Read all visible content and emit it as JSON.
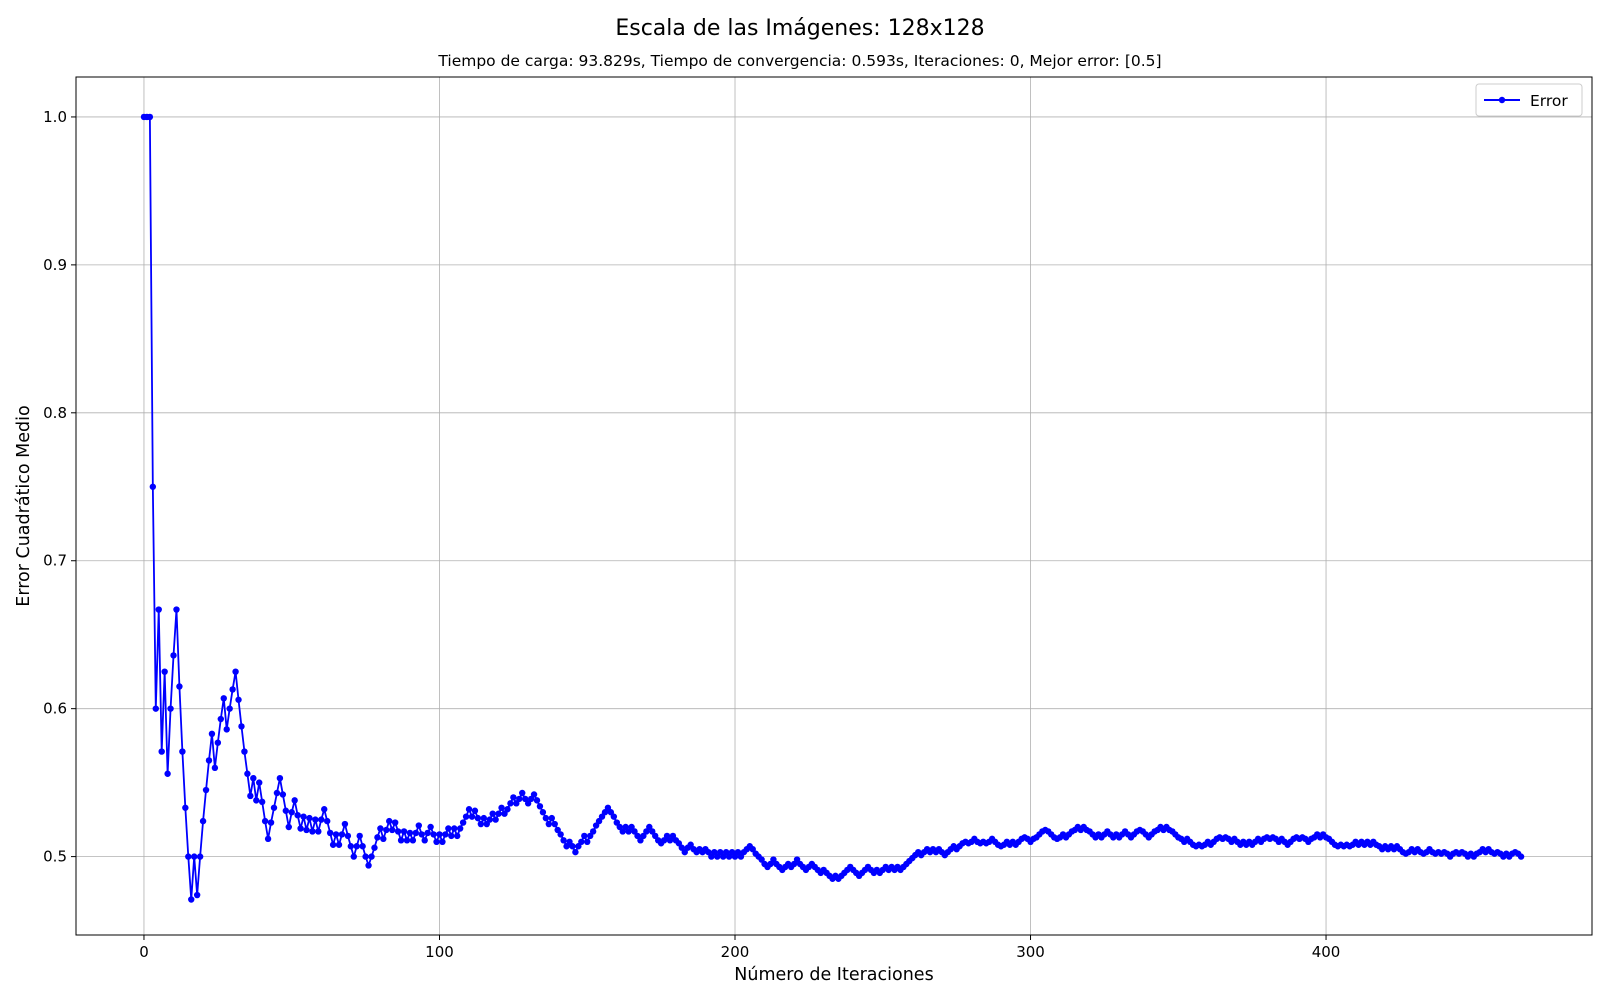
{
  "chart_data": {
    "type": "line",
    "title": "Escala de las Imágenes: 128x128",
    "subtitle": "Tiempo de carga: 93.829s, Tiempo de convergencia: 0.593s, Iteraciones: 0, Mejor error: [0.5]",
    "xlabel": "Número de Iteraciones",
    "ylabel": "Error Cuadrático Medio",
    "xlim": [
      -23,
      490
    ],
    "ylim": [
      0.447,
      1.027
    ],
    "xticks": [
      0,
      100,
      200,
      300,
      400
    ],
    "yticks": [
      0.5,
      0.6,
      0.7,
      0.8,
      0.9,
      1.0
    ],
    "xtick_labels": [
      "0",
      "100",
      "200",
      "300",
      "400"
    ],
    "ytick_labels": [
      "0.5",
      "0.6",
      "0.7",
      "0.8",
      "0.9",
      "1.0"
    ],
    "grid": true,
    "legend_position": "top-right",
    "series": [
      {
        "name": "Error",
        "color": "#0000ff",
        "marker": "circle",
        "x_start": 0,
        "x_step": 1,
        "values": [
          1.0,
          1.0,
          1.0,
          0.75,
          0.6,
          0.667,
          0.571,
          0.625,
          0.556,
          0.6,
          0.636,
          0.667,
          0.615,
          0.571,
          0.533,
          0.5,
          0.471,
          0.5,
          0.474,
          0.5,
          0.524,
          0.545,
          0.565,
          0.583,
          0.56,
          0.577,
          0.593,
          0.607,
          0.586,
          0.6,
          0.613,
          0.625,
          0.606,
          0.588,
          0.571,
          0.556,
          0.541,
          0.553,
          0.538,
          0.55,
          0.537,
          0.524,
          0.512,
          0.523,
          0.533,
          0.543,
          0.553,
          0.542,
          0.531,
          0.52,
          0.53,
          0.538,
          0.528,
          0.519,
          0.527,
          0.518,
          0.526,
          0.517,
          0.525,
          0.517,
          0.525,
          0.532,
          0.524,
          0.516,
          0.508,
          0.515,
          0.508,
          0.515,
          0.522,
          0.514,
          0.507,
          0.5,
          0.507,
          0.514,
          0.507,
          0.5,
          0.494,
          0.5,
          0.506,
          0.513,
          0.519,
          0.512,
          0.518,
          0.524,
          0.518,
          0.523,
          0.517,
          0.511,
          0.517,
          0.511,
          0.516,
          0.511,
          0.516,
          0.521,
          0.515,
          0.511,
          0.516,
          0.52,
          0.515,
          0.51,
          0.515,
          0.51,
          0.515,
          0.519,
          0.514,
          0.519,
          0.514,
          0.519,
          0.523,
          0.527,
          0.532,
          0.527,
          0.531,
          0.526,
          0.522,
          0.526,
          0.522,
          0.525,
          0.529,
          0.525,
          0.529,
          0.533,
          0.529,
          0.532,
          0.536,
          0.54,
          0.536,
          0.539,
          0.543,
          0.539,
          0.536,
          0.539,
          0.542,
          0.538,
          0.534,
          0.53,
          0.526,
          0.522,
          0.526,
          0.522,
          0.518,
          0.515,
          0.511,
          0.507,
          0.51,
          0.507,
          0.503,
          0.507,
          0.51,
          0.514,
          0.51,
          0.514,
          0.517,
          0.521,
          0.524,
          0.527,
          0.53,
          0.533,
          0.53,
          0.527,
          0.523,
          0.52,
          0.517,
          0.52,
          0.517,
          0.52,
          0.517,
          0.514,
          0.511,
          0.514,
          0.517,
          0.52,
          0.517,
          0.514,
          0.511,
          0.509,
          0.511,
          0.514,
          0.511,
          0.514,
          0.511,
          0.509,
          0.506,
          0.503,
          0.506,
          0.508,
          0.505,
          0.503,
          0.505,
          0.503,
          0.505,
          0.503,
          0.5,
          0.503,
          0.5,
          0.503,
          0.5,
          0.503,
          0.5,
          0.503,
          0.5,
          0.503,
          0.5,
          0.503,
          0.505,
          0.507,
          0.505,
          0.502,
          0.5,
          0.498,
          0.495,
          0.493,
          0.495,
          0.498,
          0.495,
          0.493,
          0.491,
          0.493,
          0.495,
          0.493,
          0.495,
          0.498,
          0.495,
          0.493,
          0.491,
          0.493,
          0.495,
          0.493,
          0.491,
          0.489,
          0.491,
          0.489,
          0.487,
          0.485,
          0.487,
          0.485,
          0.487,
          0.489,
          0.491,
          0.493,
          0.491,
          0.489,
          0.487,
          0.489,
          0.491,
          0.493,
          0.491,
          0.489,
          0.491,
          0.489,
          0.491,
          0.493,
          0.491,
          0.493,
          0.491,
          0.493,
          0.491,
          0.493,
          0.495,
          0.497,
          0.499,
          0.501,
          0.503,
          0.501,
          0.503,
          0.505,
          0.503,
          0.505,
          0.503,
          0.505,
          0.503,
          0.501,
          0.503,
          0.505,
          0.507,
          0.505,
          0.507,
          0.509,
          0.51,
          0.509,
          0.51,
          0.512,
          0.51,
          0.509,
          0.51,
          0.509,
          0.51,
          0.512,
          0.51,
          0.508,
          0.507,
          0.508,
          0.51,
          0.508,
          0.51,
          0.508,
          0.51,
          0.512,
          0.513,
          0.512,
          0.51,
          0.512,
          0.513,
          0.515,
          0.517,
          0.518,
          0.517,
          0.515,
          0.513,
          0.512,
          0.513,
          0.515,
          0.513,
          0.515,
          0.517,
          0.518,
          0.52,
          0.518,
          0.52,
          0.518,
          0.517,
          0.515,
          0.513,
          0.515,
          0.513,
          0.515,
          0.517,
          0.515,
          0.513,
          0.515,
          0.513,
          0.515,
          0.517,
          0.515,
          0.513,
          0.515,
          0.517,
          0.518,
          0.517,
          0.515,
          0.513,
          0.515,
          0.517,
          0.518,
          0.52,
          0.518,
          0.52,
          0.518,
          0.517,
          0.515,
          0.513,
          0.512,
          0.51,
          0.512,
          0.51,
          0.508,
          0.507,
          0.508,
          0.507,
          0.508,
          0.51,
          0.508,
          0.51,
          0.512,
          0.513,
          0.512,
          0.513,
          0.512,
          0.51,
          0.512,
          0.51,
          0.508,
          0.51,
          0.508,
          0.51,
          0.508,
          0.51,
          0.512,
          0.51,
          0.512,
          0.513,
          0.512,
          0.513,
          0.512,
          0.51,
          0.512,
          0.51,
          0.508,
          0.51,
          0.512,
          0.513,
          0.512,
          0.513,
          0.512,
          0.51,
          0.512,
          0.513,
          0.515,
          0.513,
          0.515,
          0.513,
          0.512,
          0.51,
          0.508,
          0.507,
          0.508,
          0.507,
          0.508,
          0.507,
          0.508,
          0.51,
          0.508,
          0.51,
          0.508,
          0.51,
          0.508,
          0.51,
          0.508,
          0.507,
          0.505,
          0.507,
          0.505,
          0.507,
          0.505,
          0.507,
          0.505,
          0.503,
          0.502,
          0.503,
          0.505,
          0.503,
          0.505,
          0.503,
          0.502,
          0.503,
          0.505,
          0.503,
          0.502,
          0.503,
          0.502,
          0.503,
          0.502,
          0.5,
          0.502,
          0.503,
          0.502,
          0.503,
          0.502,
          0.5,
          0.502,
          0.5,
          0.502,
          0.503,
          0.505,
          0.503,
          0.505,
          0.503,
          0.502,
          0.503,
          0.502,
          0.5,
          0.502,
          0.5,
          0.502,
          0.503,
          0.502,
          0.5
        ]
      }
    ]
  }
}
